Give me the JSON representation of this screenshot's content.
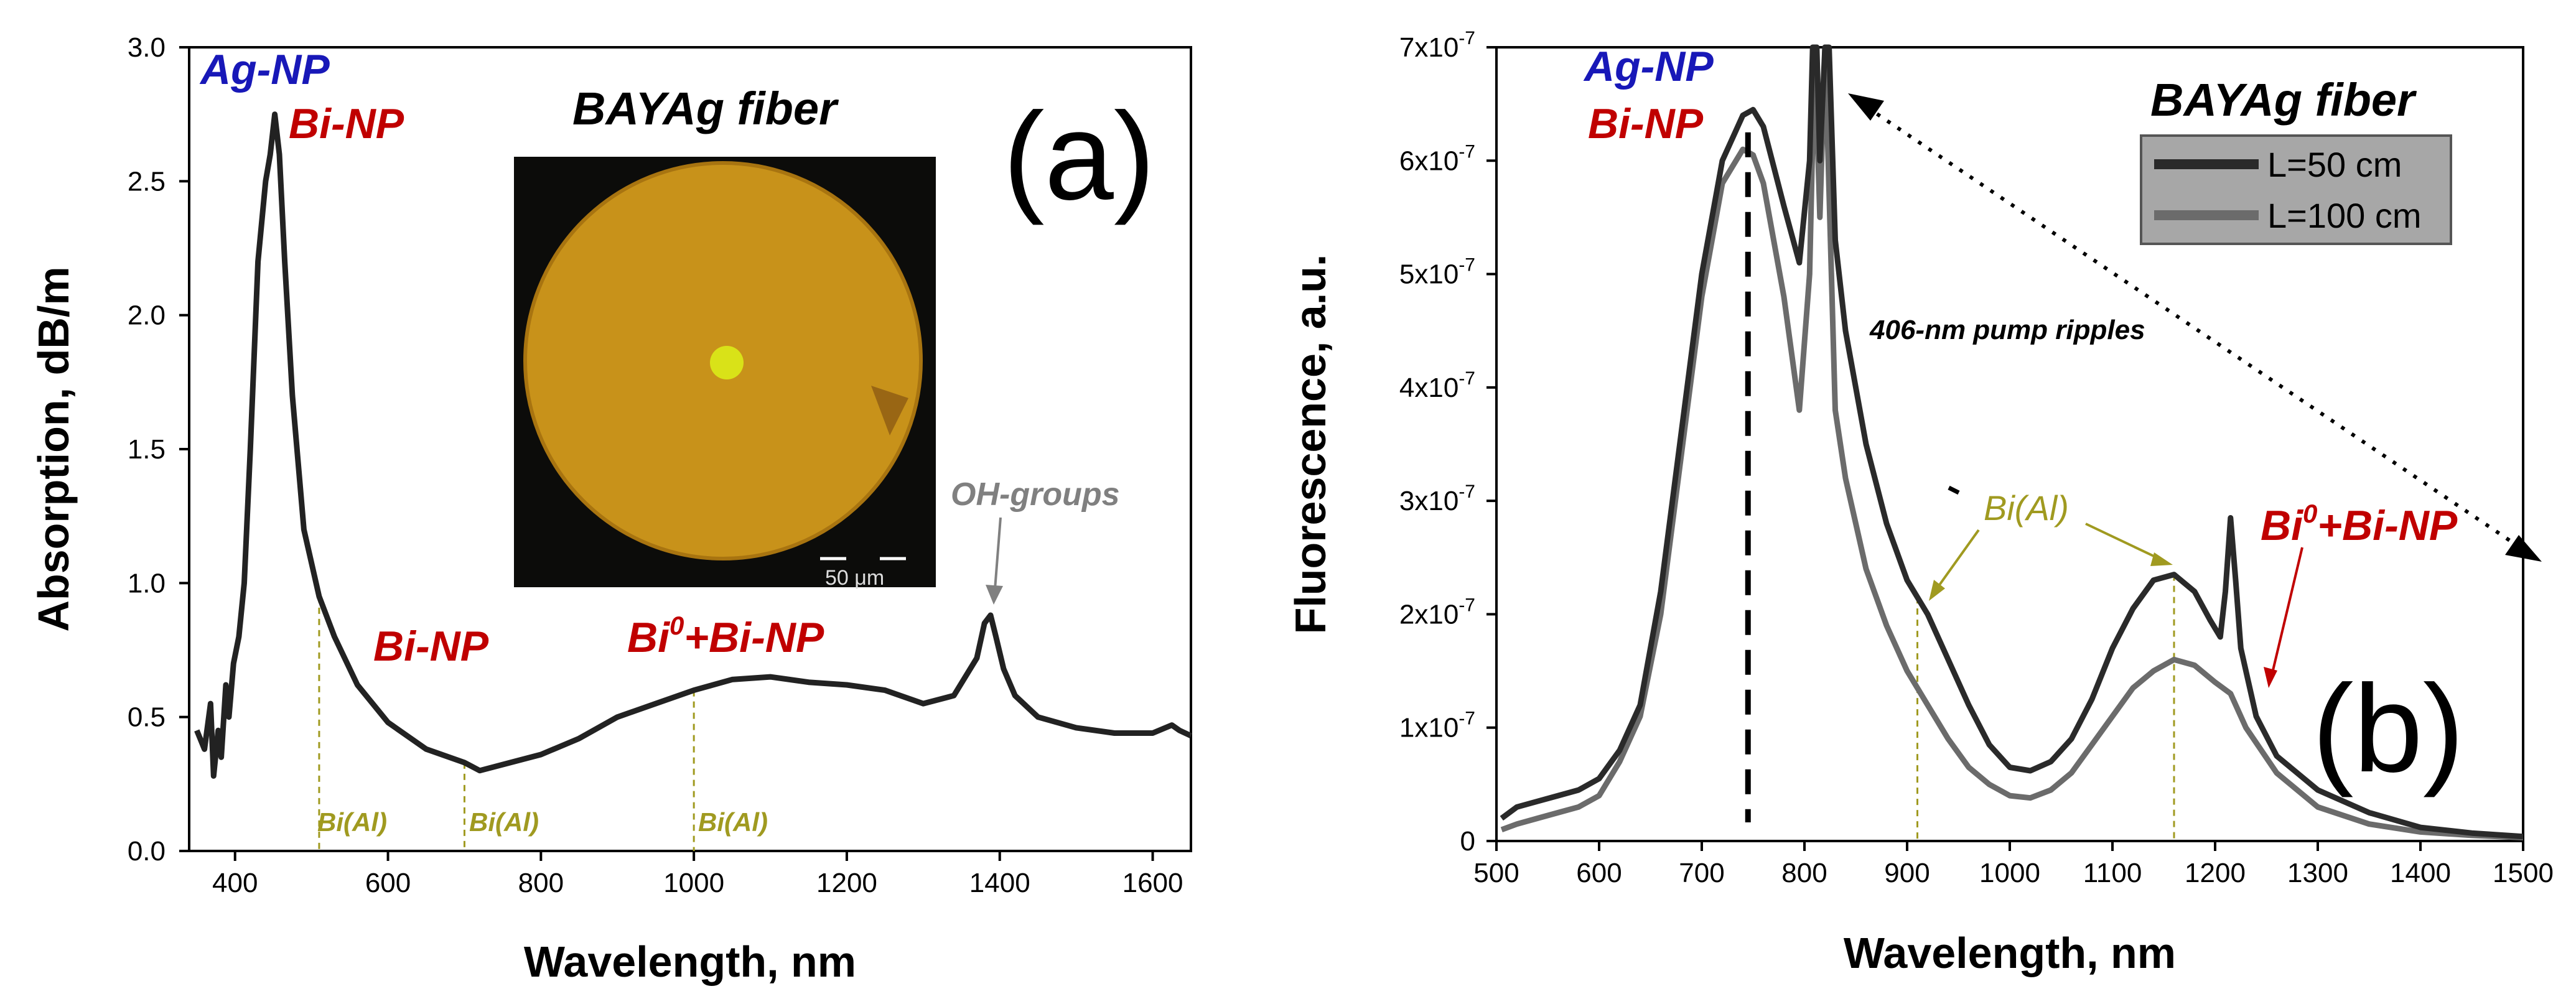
{
  "chart_data": [
    {
      "type": "line",
      "panel_label": "(a)",
      "title": "BAYAg fiber",
      "xlabel": "Wavelength, nm",
      "ylabel": "Absorption, dB/m",
      "xlim": [
        340,
        1650
      ],
      "ylim": [
        0.0,
        3.0
      ],
      "x_ticks": [
        "400",
        "600",
        "800",
        "1000",
        "1200",
        "1400",
        "1600"
      ],
      "y_ticks": [
        "0.0",
        "0.5",
        "1.0",
        "1.5",
        "2.0",
        "2.5",
        "3.0"
      ],
      "series": [
        {
          "color": "#222222",
          "x": [
            350,
            360,
            368,
            372,
            378,
            382,
            388,
            392,
            398,
            405,
            412,
            420,
            430,
            440,
            446,
            452,
            458,
            465,
            475,
            490,
            510,
            530,
            560,
            600,
            650,
            700,
            720,
            760,
            800,
            850,
            900,
            950,
            1000,
            1050,
            1100,
            1150,
            1200,
            1250,
            1300,
            1340,
            1370,
            1380,
            1388,
            1395,
            1405,
            1420,
            1450,
            1500,
            1550,
            1600,
            1625,
            1635,
            1650
          ],
          "y": [
            0.45,
            0.38,
            0.55,
            0.28,
            0.45,
            0.35,
            0.62,
            0.5,
            0.7,
            0.8,
            1.0,
            1.5,
            2.2,
            2.5,
            2.6,
            2.75,
            2.6,
            2.2,
            1.7,
            1.2,
            0.95,
            0.8,
            0.62,
            0.48,
            0.38,
            0.33,
            0.3,
            0.33,
            0.36,
            0.42,
            0.5,
            0.55,
            0.6,
            0.64,
            0.65,
            0.63,
            0.62,
            0.6,
            0.55,
            0.58,
            0.72,
            0.85,
            0.88,
            0.8,
            0.68,
            0.58,
            0.5,
            0.46,
            0.44,
            0.44,
            0.47,
            0.45,
            0.43
          ]
        }
      ],
      "annotations": {
        "ag_np": "Ag-NP",
        "bi_np_top": "Bi-NP",
        "bi_np_mid": "Bi-NP",
        "bi0_main": "Bi",
        "bi0_sup": "0",
        "bi0_rest": "+Bi-NP",
        "oh_groups": "OH-groups",
        "bi_al_1": "Bi(Al)",
        "bi_al_2": "Bi(Al)",
        "bi_al_3": "Bi(Al)",
        "scale_bar": "50 μm"
      },
      "bi_al_markers": [
        510,
        700,
        1000
      ],
      "oh_peak": 1385
    },
    {
      "type": "line",
      "panel_label": "(b)",
      "title": "BAYAg fiber",
      "xlabel": "Wavelength, nm",
      "ylabel": "Fluorescence, a.u.",
      "xlim": [
        500,
        1500
      ],
      "ylim": [
        0,
        7e-07
      ],
      "x_ticks": [
        "500",
        "600",
        "700",
        "800",
        "900",
        "1000",
        "1100",
        "1200",
        "1300",
        "1400",
        "1500"
      ],
      "y_ticks": [
        {
          "mant": "0",
          "exp": ""
        },
        {
          "mant": "1x10",
          "exp": "-7"
        },
        {
          "mant": "2x10",
          "exp": "-7"
        },
        {
          "mant": "3x10",
          "exp": "-7"
        },
        {
          "mant": "4x10",
          "exp": "-7"
        },
        {
          "mant": "5x10",
          "exp": "-7"
        },
        {
          "mant": "6x10",
          "exp": "-7"
        },
        {
          "mant": "7x10",
          "exp": "-7"
        }
      ],
      "legend_position": "top-right",
      "series": [
        {
          "name": "L=50 cm",
          "color": "#2a2a2a",
          "x": [
            505,
            520,
            540,
            560,
            580,
            600,
            620,
            640,
            660,
            680,
            700,
            720,
            740,
            750,
            760,
            780,
            795,
            805,
            808,
            812,
            815,
            820,
            824,
            830,
            840,
            860,
            880,
            900,
            920,
            940,
            960,
            980,
            1000,
            1020,
            1040,
            1060,
            1080,
            1100,
            1120,
            1140,
            1160,
            1180,
            1195,
            1205,
            1210,
            1215,
            1220,
            1225,
            1240,
            1260,
            1300,
            1350,
            1400,
            1450,
            1500
          ],
          "y": [
            2e-08,
            3e-08,
            3.5e-08,
            4e-08,
            4.5e-08,
            5.5e-08,
            8e-08,
            1.2e-07,
            2.2e-07,
            3.6e-07,
            5e-07,
            6e-07,
            6.4e-07,
            6.45e-07,
            6.3e-07,
            5.6e-07,
            5.1e-07,
            6e-07,
            7e-07,
            7e-07,
            6e-07,
            7e-07,
            7e-07,
            5.3e-07,
            4.5e-07,
            3.5e-07,
            2.8e-07,
            2.3e-07,
            2e-07,
            1.6e-07,
            1.2e-07,
            8.5e-08,
            6.5e-08,
            6.2e-08,
            7e-08,
            9e-08,
            1.25e-07,
            1.7e-07,
            2.05e-07,
            2.3e-07,
            2.35e-07,
            2.2e-07,
            1.95e-07,
            1.8e-07,
            2.2e-07,
            2.85e-07,
            2.3e-07,
            1.7e-07,
            1.1e-07,
            7.5e-08,
            4.5e-08,
            2.5e-08,
            1.2e-08,
            7e-09,
            4e-09
          ]
        },
        {
          "name": "L=100 cm",
          "color": "#6b6b6b",
          "x": [
            505,
            520,
            540,
            560,
            580,
            600,
            620,
            640,
            660,
            680,
            700,
            720,
            740,
            750,
            760,
            780,
            795,
            805,
            810,
            815,
            820,
            830,
            840,
            860,
            880,
            900,
            920,
            940,
            960,
            980,
            1000,
            1020,
            1040,
            1060,
            1080,
            1100,
            1120,
            1140,
            1160,
            1180,
            1200,
            1215,
            1230,
            1260,
            1300,
            1350,
            1400,
            1450,
            1500
          ],
          "y": [
            1e-08,
            1.5e-08,
            2e-08,
            2.5e-08,
            3e-08,
            4e-08,
            7e-08,
            1.1e-07,
            2e-07,
            3.4e-07,
            4.8e-07,
            5.8e-07,
            6.1e-07,
            6.05e-07,
            5.8e-07,
            4.8e-07,
            3.8e-07,
            5e-07,
            7e-07,
            5.5e-07,
            7e-07,
            3.8e-07,
            3.2e-07,
            2.4e-07,
            1.9e-07,
            1.5e-07,
            1.2e-07,
            9e-08,
            6.5e-08,
            5e-08,
            4e-08,
            3.8e-08,
            4.5e-08,
            6e-08,
            8.5e-08,
            1.1e-07,
            1.35e-07,
            1.5e-07,
            1.6e-07,
            1.55e-07,
            1.4e-07,
            1.3e-07,
            1e-07,
            6e-08,
            3e-08,
            1.5e-08,
            8e-09,
            5e-09,
            3e-09
          ]
        }
      ],
      "annotations": {
        "ag_np": "Ag-NP",
        "bi_np": "Bi-NP",
        "pump": "406-nm pump ripples",
        "bi_al": "Bi(Al)",
        "bi0_main": "Bi",
        "bi0_sup": "0",
        "bi0_rest": "+Bi-NP"
      },
      "dashed_marker": 745,
      "bi_al_markers": [
        910,
        1160
      ]
    }
  ]
}
